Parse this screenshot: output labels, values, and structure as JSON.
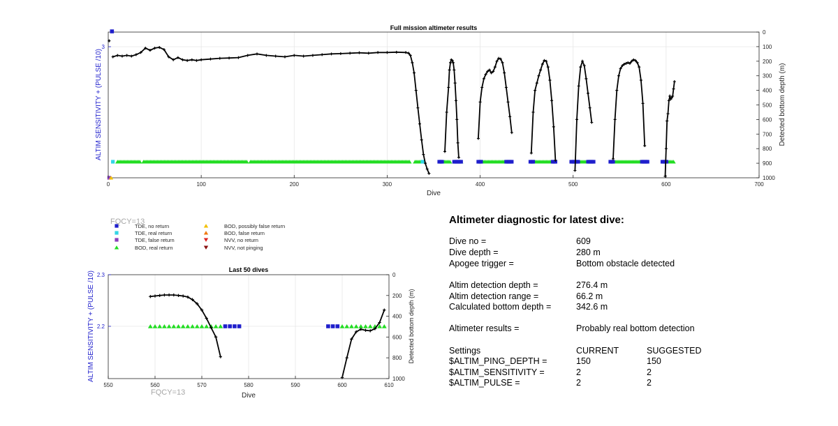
{
  "chart_data": [
    {
      "type": "line",
      "title": "Full mission altimeter results",
      "xlabel": "Dive",
      "ylabel_left": "ALTIM SENSITIVITY + (PULSE /10)",
      "ylabel_right": "Detected bottom depth (m)",
      "xlim": [
        0,
        700
      ],
      "xticks": [
        "0",
        "100",
        "200",
        "300",
        "400",
        "500",
        "600",
        "700"
      ],
      "ylim_right": [
        1000,
        0
      ],
      "yticks_right": [
        "0",
        "100",
        "200",
        "300",
        "400",
        "500",
        "600",
        "700",
        "800",
        "900",
        "1000"
      ],
      "yticks_left": [
        "3"
      ],
      "grid": true,
      "bottom_depth": {
        "x": [
          1,
          5,
          10,
          15,
          20,
          25,
          30,
          35,
          40,
          45,
          50,
          55,
          60,
          65,
          70,
          75,
          80,
          85,
          90,
          95,
          100,
          110,
          120,
          130,
          140,
          150,
          160,
          170,
          180,
          190,
          200,
          210,
          220,
          230,
          240,
          250,
          260,
          270,
          280,
          290,
          300,
          310,
          320,
          323,
          325,
          327,
          329,
          331,
          333,
          335,
          337,
          339,
          341,
          343,
          345
        ],
        "y": [
          60,
          170,
          160,
          165,
          160,
          165,
          155,
          140,
          110,
          125,
          110,
          105,
          120,
          170,
          190,
          175,
          190,
          195,
          190,
          195,
          190,
          185,
          180,
          178,
          175,
          160,
          150,
          160,
          165,
          170,
          160,
          165,
          160,
          155,
          150,
          148,
          145,
          142,
          145,
          140,
          140,
          138,
          140,
          145,
          160,
          210,
          280,
          400,
          520,
          630,
          740,
          840,
          900,
          940,
          970
        ],
        "segments": [
          {
            "x": [
              362,
              364,
              366,
              367,
              368,
              369,
              370,
              371,
              372,
              373,
              374,
              375,
              376,
              377
            ],
            "y": [
              820,
              550,
              380,
              260,
              210,
              190,
              195,
              210,
              260,
              350,
              470,
              600,
              760,
              860
            ]
          },
          {
            "x": [
              398,
              400,
              402,
              404,
              406,
              408,
              410,
              412,
              414,
              416,
              418,
              420,
              422,
              424,
              426,
              428,
              430,
              432,
              434
            ],
            "y": [
              730,
              480,
              380,
              320,
              290,
              270,
              260,
              280,
              270,
              240,
              200,
              180,
              185,
              210,
              280,
              380,
              480,
              580,
              690
            ]
          },
          {
            "x": [
              455,
              457,
              459,
              461,
              463,
              465,
              467,
              469,
              471,
              473,
              475,
              477,
              479,
              481
            ],
            "y": [
              830,
              550,
              400,
              350,
              300,
              260,
              220,
              195,
              200,
              240,
              330,
              470,
              650,
              880
            ]
          },
          {
            "x": [
              502,
              504,
              506,
              508,
              510,
              512,
              514,
              516,
              518,
              520
            ],
            "y": [
              950,
              600,
              370,
              240,
              200,
              230,
              320,
              420,
              520,
              620
            ]
          },
          {
            "x": [
              543,
              545,
              547,
              549,
              551,
              553,
              555,
              557,
              559,
              561,
              563,
              565,
              567,
              569,
              571,
              573,
              575,
              577
            ],
            "y": [
              870,
              600,
              400,
              300,
              250,
              230,
              220,
              215,
              210,
              215,
              200,
              190,
              195,
              210,
              240,
              330,
              490,
              780
            ]
          },
          {
            "x": [
              599,
              600,
              601,
              602,
              603,
              604,
              605,
              606,
              607,
              608,
              609
            ],
            "y": [
              990,
              800,
              610,
              560,
              470,
              440,
              460,
              450,
              440,
              390,
              340
            ]
          }
        ]
      },
      "bod_real_return_runs": [
        [
          10,
          35
        ],
        [
          38,
          150
        ],
        [
          153,
          325
        ],
        [
          330,
          338
        ],
        [
          360,
          368
        ],
        [
          378,
          380
        ],
        [
          400,
          428
        ],
        [
          458,
          478
        ],
        [
          504,
          517
        ],
        [
          543,
          575
        ],
        [
          602,
          609
        ]
      ],
      "tde_no_return_runs": [
        [
          356,
          360
        ],
        [
          372,
          380
        ],
        [
          398,
          402
        ],
        [
          428,
          434
        ],
        [
          454,
          458
        ],
        [
          478,
          482
        ],
        [
          498,
          506
        ],
        [
          516,
          522
        ],
        [
          540,
          544
        ],
        [
          574,
          580
        ],
        [
          596,
          601
        ]
      ],
      "tde_real_return_x": [
        5,
        338
      ],
      "setting_markers": [
        {
          "x": 4,
          "marker": "TDE, no return",
          "level": "top"
        },
        {
          "x": 1,
          "marker": "TDE, false return",
          "level": "bottom"
        },
        {
          "x": 3,
          "marker": "BOD, possibly false return",
          "level": "bottom"
        }
      ]
    },
    {
      "type": "line",
      "title": "Last 50 dives",
      "xlabel": "Dive",
      "ylabel_left": "ALTIM SENSITIVITY + (PULSE /10)",
      "ylabel_right": "Detected bottom depth (m)",
      "xlim": [
        550,
        610
      ],
      "xticks": [
        "550",
        "560",
        "570",
        "580",
        "590",
        "600",
        "610"
      ],
      "yticks_left": [
        "2.3",
        "2.2"
      ],
      "ylim_right": [
        1000,
        0
      ],
      "yticks_right": [
        "0",
        "200",
        "400",
        "600",
        "800",
        "1000"
      ],
      "grid": true,
      "bottom_depth": {
        "segments": [
          {
            "x": [
              559,
              560,
              561,
              562,
              563,
              564,
              565,
              566,
              567,
              568,
              569,
              570,
              571,
              572,
              573,
              574
            ],
            "y": [
              210,
              205,
              200,
              195,
              195,
              195,
              200,
              205,
              215,
              240,
              280,
              340,
              420,
              510,
              600,
              790
            ]
          },
          {
            "x": [
              600,
              601,
              602,
              603,
              604,
              605,
              606,
              607,
              608,
              609
            ],
            "y": [
              990,
              800,
              620,
              550,
              525,
              535,
              540,
              520,
              460,
              340
            ]
          }
        ]
      },
      "bod_real_return_x": [
        559,
        560,
        561,
        562,
        563,
        564,
        565,
        566,
        567,
        568,
        569,
        570,
        571,
        572,
        573,
        574,
        600,
        601,
        602,
        603,
        604,
        605,
        606,
        607,
        608,
        609
      ],
      "tde_no_return_x": [
        575,
        576,
        577,
        578,
        597,
        598,
        599
      ]
    }
  ],
  "fqcy_label": "FQCY=13",
  "legend": {
    "items": [
      {
        "label": "TDE, no return",
        "color": "#1f1fcc",
        "shape": "square"
      },
      {
        "label": "TDE, real return",
        "color": "#33d6e6",
        "shape": "square"
      },
      {
        "label": "TDE, false return",
        "color": "#8a3dbd",
        "shape": "square"
      },
      {
        "label": "BOD, real return",
        "color": "#22dd22",
        "shape": "triangle-up"
      },
      {
        "label": "BOD, possibly false return",
        "color": "#f2c000",
        "shape": "triangle-up"
      },
      {
        "label": "BOD, false return",
        "color": "#f07a10",
        "shape": "triangle-up"
      },
      {
        "label": "NVV, no return",
        "color": "#dd2222",
        "shape": "triangle-down"
      },
      {
        "label": "NVV, not pinging",
        "color": "#8a1010",
        "shape": "triangle-down"
      }
    ]
  },
  "diagnostic": {
    "title": "Altimeter diagnostic for latest dive:",
    "rows": [
      {
        "label": "Dive no =",
        "value": "609"
      },
      {
        "label": "Dive depth =",
        "value": "280 m"
      },
      {
        "label": "Apogee trigger =",
        "value": "Bottom obstacle detected"
      },
      {
        "label": "Altim detection depth =",
        "value": "276.4 m"
      },
      {
        "label": "Altim detection range =",
        "value": "66.2 m"
      },
      {
        "label": "Calculated bottom depth =",
        "value": "342.6 m"
      },
      {
        "label": "Altimeter results =",
        "value": "Probably real bottom detection"
      }
    ],
    "settings_header": {
      "label": "Settings",
      "current": "CURRENT",
      "suggested": "SUGGESTED"
    },
    "settings": [
      {
        "name": "$ALTIM_PING_DEPTH =",
        "current": "150",
        "suggested": "150"
      },
      {
        "name": "$ALTIM_SENSITIVITY =",
        "current": "2",
        "suggested": "2"
      },
      {
        "name": "$ALTIM_PULSE =",
        "current": "2",
        "suggested": "2"
      }
    ]
  },
  "colors": {
    "axis_left": "#1f1fcc",
    "line": "#000000",
    "grid": "#e6e6e6",
    "fqcy": "#a6a6a6"
  }
}
